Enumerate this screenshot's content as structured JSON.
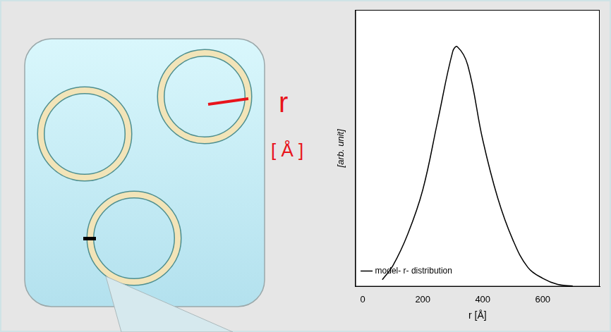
{
  "chart_data": {
    "type": "line",
    "x_label": "r [Å]",
    "y_label": "[arb. unit]",
    "x": [
      65,
      100,
      150,
      200,
      250,
      300,
      315,
      350,
      400,
      450,
      500,
      550,
      600,
      650,
      700
    ],
    "series": [
      {
        "name": "model- r- distribution",
        "color": "#000000",
        "values": [
          0.025,
          0.075,
          0.19,
          0.35,
          0.6,
          0.85,
          0.867,
          0.8,
          0.53,
          0.32,
          0.17,
          0.07,
          0.03,
          0.008,
          0.002
        ]
      }
    ],
    "xlim": [
      -25,
      790
    ],
    "xticks": [
      0,
      200,
      400,
      600
    ],
    "ylim": [
      0,
      1
    ],
    "tick_labels": "x",
    "grid": false,
    "legend": "upper right"
  },
  "diagram": {
    "labels": [
      "r",
      "[ Å ]"
    ]
  }
}
